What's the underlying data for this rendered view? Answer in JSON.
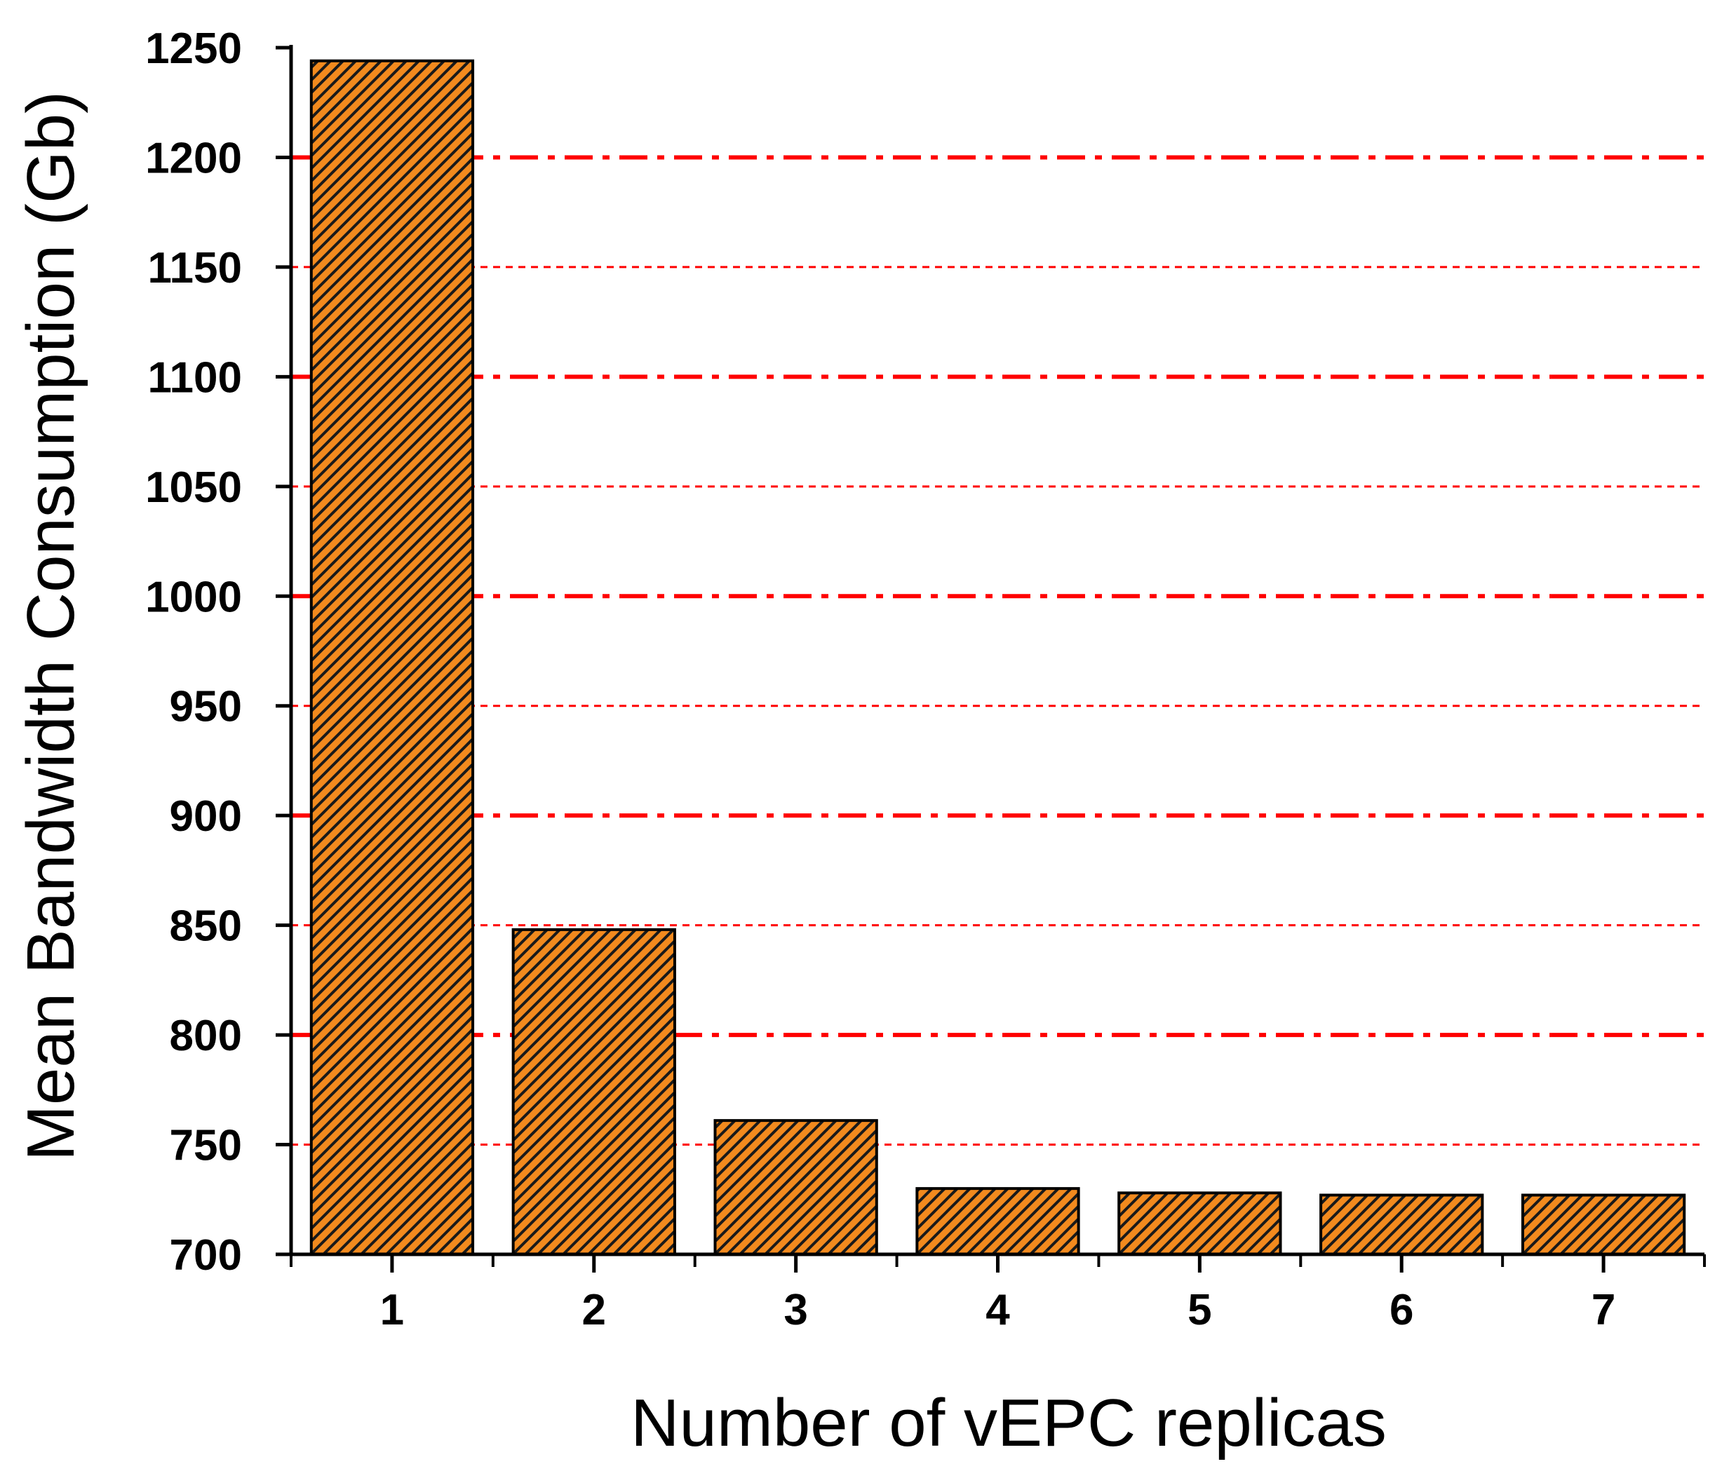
{
  "chart_data": {
    "type": "bar",
    "title": "",
    "xlabel": "Number of vEPC replicas",
    "ylabel": "Mean Bandwidth Consumption (Gb)",
    "categories": [
      "1",
      "2",
      "3",
      "4",
      "5",
      "6",
      "7"
    ],
    "values": [
      1244,
      848,
      761,
      730,
      728,
      727,
      727
    ],
    "ylim": [
      700,
      1250
    ],
    "yticks": [
      "700",
      "750",
      "800",
      "850",
      "900",
      "950",
      "1000",
      "1050",
      "1100",
      "1150",
      "1200",
      "1250"
    ],
    "grid": true,
    "legend": "none",
    "colors": {
      "bar_fill": "#f28a1e",
      "bar_hatch": "#1a1a1a",
      "bar_outline": "#000000",
      "grid_major": "#ff0000",
      "grid_minor": "#ff0000",
      "axis": "#000000"
    }
  }
}
